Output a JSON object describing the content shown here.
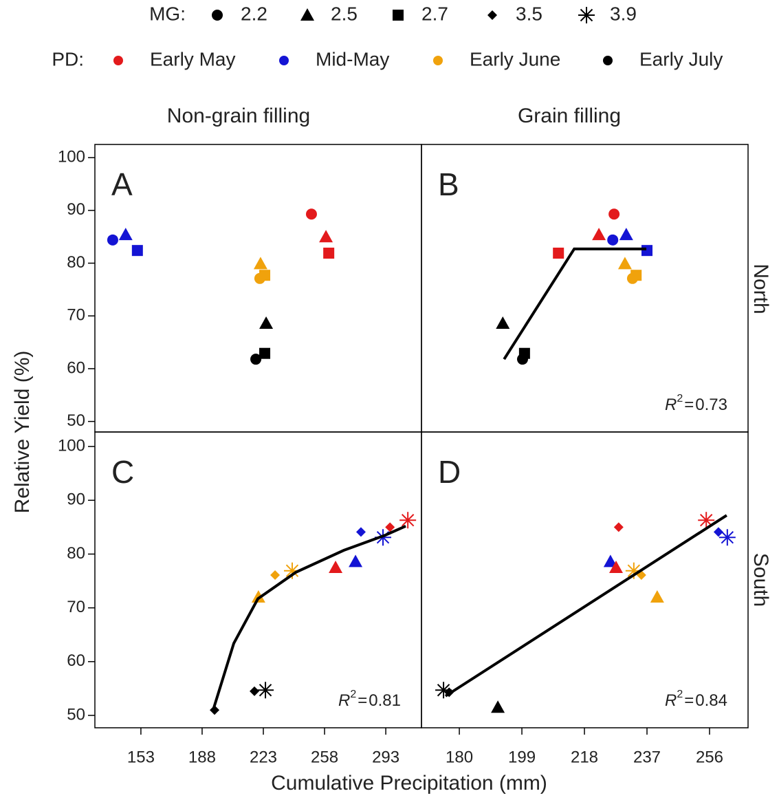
{
  "figure": {
    "legend": {
      "mg_title": "MG:",
      "mg": [
        {
          "label": "2.2",
          "shape": "circle"
        },
        {
          "label": "2.5",
          "shape": "triangle"
        },
        {
          "label": "2.7",
          "shape": "square"
        },
        {
          "label": "3.5",
          "shape": "diamond"
        },
        {
          "label": "3.9",
          "shape": "star"
        }
      ],
      "pd_title": "PD:",
      "pd": [
        {
          "label": "Early May",
          "color": "#e31a1c"
        },
        {
          "label": "Mid-May",
          "color": "#1414d4"
        },
        {
          "label": "Early June",
          "color": "#f0a20c"
        },
        {
          "label": "Early July",
          "color": "#000000"
        }
      ]
    },
    "columns": [
      "Non-grain filling",
      "Grain filling"
    ],
    "rows": [
      "North",
      "South"
    ],
    "x_label": "Cumulative Precipitation (mm)",
    "y_label": "Relative Yield (%)",
    "r2_label": {
      "symbol": "R",
      "power": "2",
      "equals": "="
    }
  },
  "chart_data": [
    {
      "type": "scatter",
      "panel_label": "A",
      "xlim": [
        126.7,
        313.4
      ],
      "ylim": [
        48.0,
        102.5
      ],
      "yticks": [
        50,
        60,
        70,
        80,
        90,
        100
      ],
      "points": [
        {
          "x": 136.9,
          "y": 84.4,
          "mg": "2.2",
          "pd": "Mid-May"
        },
        {
          "x": 144.3,
          "y": 85.4,
          "mg": "2.5",
          "pd": "Mid-May"
        },
        {
          "x": 151.0,
          "y": 82.4,
          "mg": "2.7",
          "pd": "Mid-May"
        },
        {
          "x": 250.5,
          "y": 89.3,
          "mg": "2.2",
          "pd": "Early May"
        },
        {
          "x": 258.8,
          "y": 85.0,
          "mg": "2.5",
          "pd": "Early May"
        },
        {
          "x": 260.4,
          "y": 81.9,
          "mg": "2.7",
          "pd": "Early May"
        },
        {
          "x": 221.4,
          "y": 79.9,
          "mg": "2.5",
          "pd": "Early June"
        },
        {
          "x": 221.0,
          "y": 77.1,
          "mg": "2.2",
          "pd": "Early June"
        },
        {
          "x": 223.8,
          "y": 77.7,
          "mg": "2.7",
          "pd": "Early June"
        },
        {
          "x": 224.6,
          "y": 68.6,
          "mg": "2.5",
          "pd": "Early July"
        },
        {
          "x": 218.7,
          "y": 61.8,
          "mg": "2.2",
          "pd": "Early July"
        },
        {
          "x": 223.8,
          "y": 62.9,
          "mg": "2.7",
          "pd": "Early July"
        }
      ]
    },
    {
      "type": "scatter",
      "panel_label": "B",
      "xlim": [
        168.5,
        267.7
      ],
      "ylim": [
        48.0,
        102.5
      ],
      "r_squared": 0.73,
      "fit": {
        "x": [
          193.6,
          214.9,
          236.8
        ],
        "y": [
          61.8,
          82.7,
          82.7
        ]
      },
      "points": [
        {
          "x": 210.1,
          "y": 81.9,
          "mg": "2.7",
          "pd": "Early May"
        },
        {
          "x": 222.4,
          "y": 85.4,
          "mg": "2.5",
          "pd": "Early May"
        },
        {
          "x": 227.0,
          "y": 89.3,
          "mg": "2.2",
          "pd": "Early May"
        },
        {
          "x": 226.6,
          "y": 84.4,
          "mg": "2.2",
          "pd": "Mid-May"
        },
        {
          "x": 230.7,
          "y": 85.4,
          "mg": "2.5",
          "pd": "Mid-May"
        },
        {
          "x": 237.0,
          "y": 82.4,
          "mg": "2.7",
          "pd": "Mid-May"
        },
        {
          "x": 230.3,
          "y": 79.9,
          "mg": "2.5",
          "pd": "Early June"
        },
        {
          "x": 232.6,
          "y": 77.1,
          "mg": "2.2",
          "pd": "Early June"
        },
        {
          "x": 233.7,
          "y": 77.7,
          "mg": "2.7",
          "pd": "Early June"
        },
        {
          "x": 193.2,
          "y": 68.6,
          "mg": "2.5",
          "pd": "Early July"
        },
        {
          "x": 199.2,
          "y": 61.8,
          "mg": "2.2",
          "pd": "Early July"
        },
        {
          "x": 199.8,
          "y": 62.9,
          "mg": "2.7",
          "pd": "Early July"
        }
      ]
    },
    {
      "type": "scatter",
      "panel_label": "C",
      "xlim": [
        126.7,
        313.4
      ],
      "ylim": [
        47.7,
        102.7
      ],
      "xticks": [
        153,
        188,
        223,
        258,
        293
      ],
      "yticks": [
        50,
        60,
        70,
        80,
        90,
        100
      ],
      "r_squared": 0.81,
      "fit": {
        "x": [
          194.3,
          206.1,
          219.9,
          241.5,
          269.0,
          292.6,
          304.4
        ],
        "y": [
          51.0,
          63.4,
          71.7,
          76.6,
          80.7,
          83.5,
          85.2
        ]
      },
      "points": [
        {
          "x": 195.1,
          "y": 51.0,
          "mg": "3.5",
          "pd": "Early July"
        },
        {
          "x": 217.9,
          "y": 54.5,
          "mg": "3.5",
          "pd": "Early July"
        },
        {
          "x": 224.2,
          "y": 54.7,
          "mg": "3.9",
          "pd": "Early July"
        },
        {
          "x": 220.2,
          "y": 72.0,
          "mg": "2.5",
          "pd": "Early June"
        },
        {
          "x": 229.7,
          "y": 76.1,
          "mg": "3.5",
          "pd": "Early June"
        },
        {
          "x": 239.5,
          "y": 76.9,
          "mg": "3.9",
          "pd": "Early June"
        },
        {
          "x": 264.3,
          "y": 77.5,
          "mg": "2.5",
          "pd": "Early May"
        },
        {
          "x": 275.7,
          "y": 78.6,
          "mg": "2.5",
          "pd": "Mid-May"
        },
        {
          "x": 278.8,
          "y": 84.1,
          "mg": "3.5",
          "pd": "Mid-May"
        },
        {
          "x": 291.4,
          "y": 83.1,
          "mg": "3.9",
          "pd": "Mid-May"
        },
        {
          "x": 295.4,
          "y": 85.0,
          "mg": "3.5",
          "pd": "Early May"
        },
        {
          "x": 305.6,
          "y": 86.3,
          "mg": "3.9",
          "pd": "Early May"
        }
      ]
    },
    {
      "type": "scatter",
      "panel_label": "D",
      "xlim": [
        168.5,
        267.7
      ],
      "ylim": [
        47.7,
        102.7
      ],
      "xticks": [
        180,
        199,
        218,
        237,
        256
      ],
      "r_squared": 0.84,
      "fit": {
        "x": [
          175.8,
          261.2
        ],
        "y": [
          53.6,
          87.2
        ]
      },
      "points": [
        {
          "x": 175.2,
          "y": 54.7,
          "mg": "3.9",
          "pd": "Early July"
        },
        {
          "x": 176.9,
          "y": 54.3,
          "mg": "3.5",
          "pd": "Early July"
        },
        {
          "x": 191.7,
          "y": 51.5,
          "mg": "2.5",
          "pd": "Early July"
        },
        {
          "x": 228.4,
          "y": 85.0,
          "mg": "3.5",
          "pd": "Early May"
        },
        {
          "x": 225.9,
          "y": 78.6,
          "mg": "2.5",
          "pd": "Mid-May"
        },
        {
          "x": 227.6,
          "y": 77.5,
          "mg": "2.5",
          "pd": "Early May"
        },
        {
          "x": 233.0,
          "y": 76.9,
          "mg": "3.9",
          "pd": "Early June"
        },
        {
          "x": 235.3,
          "y": 76.1,
          "mg": "3.5",
          "pd": "Early June"
        },
        {
          "x": 240.1,
          "y": 72.0,
          "mg": "2.5",
          "pd": "Early June"
        },
        {
          "x": 255.0,
          "y": 86.3,
          "mg": "3.9",
          "pd": "Early May"
        },
        {
          "x": 258.7,
          "y": 84.1,
          "mg": "3.5",
          "pd": "Mid-May"
        },
        {
          "x": 261.4,
          "y": 83.1,
          "mg": "3.9",
          "pd": "Mid-May"
        }
      ]
    }
  ]
}
